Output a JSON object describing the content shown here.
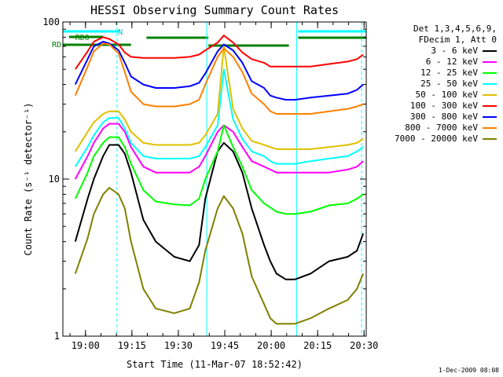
{
  "chart_data": {
    "type": "line",
    "title": "HESSI Observing Summary Count Rates",
    "xlabel": "Start Time (11-Mar-07 18:52:42)",
    "ylabel": "Count Rate (s⁻¹ detector⁻¹)",
    "xlim_minutes": [
      0,
      98
    ],
    "ylim": [
      1,
      100
    ],
    "yscale": "log",
    "x_tick_labels": [
      "19:00",
      "19:15",
      "19:30",
      "19:45",
      "20:00",
      "20:15",
      "20:30"
    ],
    "x_tick_minutes": [
      7.3,
      22.3,
      37.3,
      52.3,
      67.3,
      82.3,
      97.3
    ],
    "y_tick_labels": [
      "1",
      "10",
      "100"
    ],
    "y_tick_values": [
      1,
      10,
      100
    ],
    "legend_header": [
      "Det 1,3,4,5,6,9,",
      "FDecim 1, Att 0"
    ],
    "series": [
      {
        "name": "3 - 6 keV",
        "color": "#000000",
        "x": [
          0,
          4,
          8,
          10,
          13,
          15,
          18,
          20,
          22,
          26,
          30,
          36,
          41,
          44,
          46,
          50,
          52,
          55,
          58,
          61,
          65,
          67,
          69,
          72,
          75,
          80,
          86,
          92,
          95,
          97,
          98
        ],
        "y": [
          null,
          4.0,
          7.5,
          10,
          14,
          16.5,
          16.5,
          14.5,
          11,
          5.5,
          4.0,
          3.2,
          3.0,
          3.8,
          7.5,
          15,
          17,
          15,
          11,
          6.5,
          3.8,
          3.0,
          2.5,
          2.3,
          2.3,
          2.5,
          3.0,
          3.2,
          3.5,
          4.5,
          null
        ]
      },
      {
        "name": "6 - 12 keV",
        "color": "#ff00ff",
        "x": [
          0,
          4,
          8,
          10,
          13,
          15,
          18,
          20,
          22,
          26,
          30,
          36,
          41,
          44,
          46,
          50,
          52,
          55,
          58,
          61,
          65,
          67,
          69,
          72,
          75,
          80,
          86,
          92,
          95,
          97,
          98
        ],
        "y": [
          null,
          10,
          14,
          17,
          21,
          22.5,
          22.5,
          20,
          16,
          12,
          11,
          11,
          11,
          12,
          14,
          20,
          22,
          20,
          16,
          13,
          12,
          11.5,
          11,
          11,
          11,
          11,
          11,
          11.5,
          12,
          13,
          null
        ]
      },
      {
        "name": "12 - 25 keV",
        "color": "#00ff00",
        "x": [
          0,
          4,
          8,
          10,
          13,
          15,
          18,
          20,
          22,
          26,
          30,
          36,
          41,
          44,
          46,
          50,
          52,
          55,
          58,
          61,
          65,
          67,
          69,
          72,
          75,
          80,
          86,
          92,
          95,
          97,
          98
        ],
        "y": [
          null,
          7.5,
          11,
          14,
          17,
          18.5,
          18.5,
          16,
          12.5,
          8.5,
          7.2,
          6.9,
          6.8,
          7.5,
          10,
          15,
          22,
          16,
          12,
          8.5,
          7.0,
          6.6,
          6.2,
          6.0,
          6.0,
          6.2,
          6.8,
          7.0,
          7.5,
          8.0,
          null
        ]
      },
      {
        "name": "25 - 50 keV",
        "color": "#00ffff",
        "x": [
          0,
          4,
          8,
          10,
          13,
          15,
          18,
          20,
          22,
          26,
          30,
          36,
          41,
          44,
          46,
          50,
          52,
          55,
          58,
          61,
          65,
          67,
          69,
          72,
          75,
          80,
          86,
          92,
          95,
          97,
          98
        ],
        "y": [
          null,
          12,
          16,
          19,
          23,
          24.5,
          24.5,
          21,
          17,
          14,
          13.5,
          13.5,
          13.5,
          14,
          16,
          22,
          50,
          24,
          18,
          15,
          14,
          13,
          12.5,
          12.5,
          12.5,
          13,
          13.5,
          14,
          15,
          16,
          null
        ]
      },
      {
        "name": "50 - 100 keV",
        "color": "#e0c000",
        "x": [
          0,
          4,
          8,
          10,
          13,
          15,
          18,
          20,
          22,
          26,
          30,
          36,
          41,
          44,
          46,
          50,
          52,
          55,
          58,
          61,
          65,
          67,
          69,
          72,
          75,
          80,
          86,
          92,
          95,
          97,
          98
        ],
        "y": [
          null,
          15,
          20,
          23,
          26,
          27,
          27,
          24,
          20,
          17,
          16.5,
          16.5,
          16.5,
          17,
          19,
          26,
          70,
          28,
          21,
          17.5,
          16.5,
          16,
          15.5,
          15.5,
          15.5,
          15.5,
          16,
          16.5,
          17,
          18,
          null
        ]
      },
      {
        "name": "100 - 300 keV",
        "color": "#ff0000",
        "x": [
          0,
          4,
          8,
          10,
          13,
          15,
          18,
          20,
          22,
          26,
          30,
          36,
          41,
          44,
          46,
          50,
          52,
          55,
          58,
          61,
          65,
          67,
          69,
          72,
          75,
          80,
          86,
          92,
          95,
          97,
          98
        ],
        "y": [
          null,
          50,
          65,
          75,
          80,
          78,
          72,
          64,
          60,
          59,
          59,
          59,
          60,
          62,
          66,
          74,
          82,
          74,
          64,
          58,
          55,
          52,
          52,
          52,
          52,
          52,
          54,
          56,
          58,
          62,
          null
        ]
      },
      {
        "name": "300 - 800 keV",
        "color": "#0000ff",
        "x": [
          0,
          4,
          8,
          10,
          13,
          15,
          18,
          20,
          22,
          26,
          30,
          36,
          41,
          44,
          46,
          50,
          52,
          55,
          58,
          61,
          65,
          67,
          69,
          72,
          75,
          80,
          86,
          92,
          95,
          97,
          98
        ],
        "y": [
          null,
          40,
          58,
          70,
          75,
          73,
          66,
          55,
          45,
          40,
          38,
          38,
          39,
          41,
          47,
          65,
          72,
          66,
          55,
          42,
          38,
          34,
          33,
          32,
          32,
          33,
          34,
          35,
          37,
          40,
          null
        ]
      },
      {
        "name": "800 - 7000 keV",
        "color": "#ff8000",
        "x": [
          0,
          4,
          8,
          10,
          13,
          15,
          18,
          20,
          22,
          26,
          30,
          36,
          41,
          44,
          46,
          50,
          52,
          55,
          58,
          61,
          65,
          67,
          69,
          72,
          75,
          80,
          86,
          92,
          95,
          97,
          98
        ],
        "y": [
          null,
          34,
          52,
          65,
          73,
          72,
          63,
          48,
          36,
          30,
          29,
          29,
          30,
          32,
          40,
          60,
          68,
          60,
          48,
          35,
          30,
          27,
          26,
          26,
          26,
          26,
          27,
          28,
          29,
          30,
          null
        ]
      },
      {
        "name": "7000 - 20000 keV",
        "color": "#808000",
        "x": [
          0,
          4,
          8,
          10,
          13,
          15,
          18,
          20,
          22,
          26,
          30,
          36,
          41,
          44,
          46,
          50,
          52,
          55,
          58,
          61,
          65,
          67,
          69,
          72,
          75,
          80,
          86,
          92,
          95,
          97,
          98
        ],
        "y": [
          null,
          2.5,
          4.2,
          6.0,
          8.0,
          8.8,
          8.0,
          6.5,
          4.0,
          2.0,
          1.5,
          1.4,
          1.5,
          2.2,
          3.5,
          6.5,
          7.8,
          6.5,
          4.5,
          2.4,
          1.6,
          1.3,
          1.2,
          1.2,
          1.2,
          1.3,
          1.5,
          1.7,
          2.0,
          2.5,
          null
        ]
      }
    ],
    "flag_labels": [
      "RD0",
      "N",
      "RD"
    ],
    "footer": "1-Dec-2009 08:08"
  }
}
